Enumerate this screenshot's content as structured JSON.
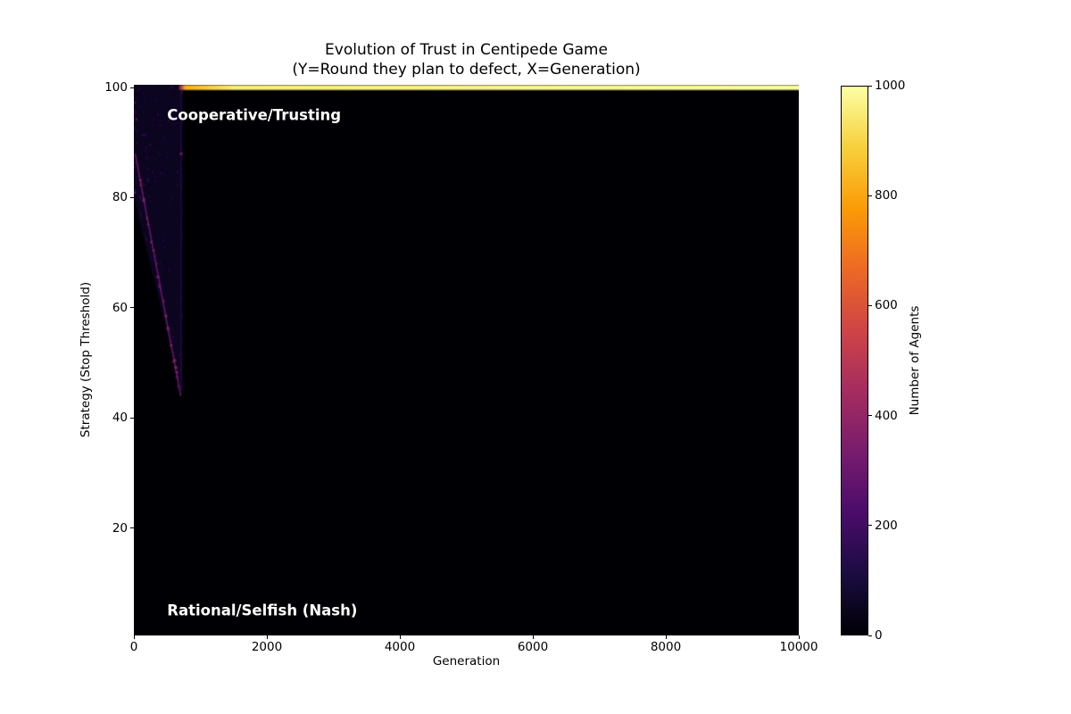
{
  "figure": {
    "background": "#ffffff"
  },
  "chart_data": {
    "type": "heatmap",
    "title": "Evolution of Trust in Centipede Game",
    "subtitle": "(Y=Round they plan to defect, X=Generation)",
    "xlabel": "Generation",
    "ylabel": "Strategy (Stop Threshold)",
    "colorbar_label": "Number of Agents",
    "x_range": [
      0,
      10000
    ],
    "y_range": [
      0.5,
      100.5
    ],
    "value_range": [
      0,
      1000
    ],
    "x_ticks": [
      0,
      2000,
      4000,
      6000,
      8000,
      10000
    ],
    "y_ticks": [
      20,
      40,
      60,
      80,
      100
    ],
    "colorbar_ticks": [
      0,
      200,
      400,
      600,
      800,
      1000
    ],
    "colormap": "inferno",
    "colormap_stops": [
      "#000004",
      "#1b0c41",
      "#4a0c6b",
      "#781c6d",
      "#a52c60",
      "#cf4446",
      "#ed6925",
      "#fb9b06",
      "#f7d03c",
      "#fcffa4"
    ],
    "annotations": [
      {
        "text": "Cooperative/Trusting",
        "x": 500,
        "y": 95,
        "color": "#ffffff"
      },
      {
        "text": "Rational/Selfish (Nash)",
        "x": 500,
        "y": 5,
        "color": "#ffffff"
      }
    ],
    "features": {
      "description": "Nearly all 1000 agents converge to stop-threshold 100 (full cooperation) after ~generation 750; before that the dominant strategy drifts down from ~88 to ~44 over generations 0-700, then jumps back to 100.",
      "background_value": 0,
      "initial_cloud": {
        "x_start": 0,
        "x_end": 730,
        "y_bottom_at_start": 80,
        "y_bottom_at_end": 44,
        "value": 55
      },
      "drift_streak": {
        "x_start": 20,
        "y_start": 88,
        "x_end": 705,
        "y_end": 44,
        "value": 300
      },
      "resurgence_column": {
        "x": 712,
        "y_top": 100,
        "y_bottom": 45,
        "value": 140
      },
      "transition_band": {
        "y": 100,
        "x_start": 655,
        "x_end": 750,
        "value": 430
      },
      "converged_band": {
        "y": 100,
        "x_start": 770,
        "x_end": 10000,
        "value": 1000
      }
    }
  }
}
